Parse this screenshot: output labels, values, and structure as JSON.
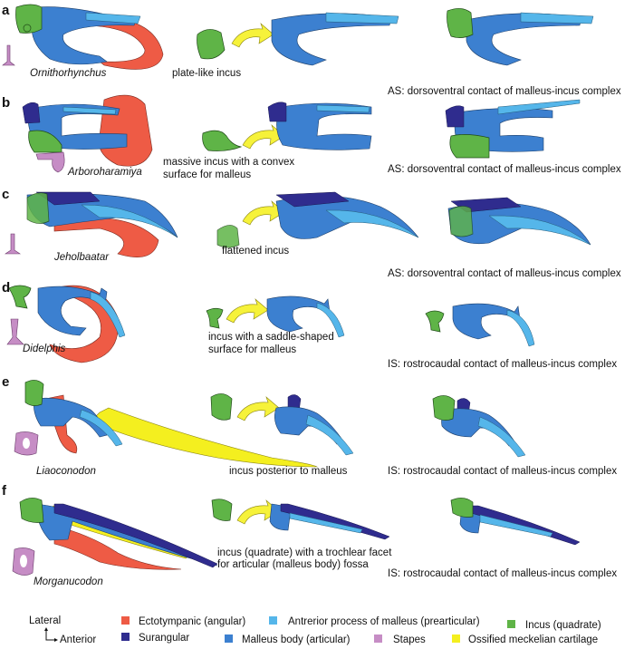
{
  "colors": {
    "ectotympanic": "#ee5b45",
    "surangular": "#2f2c8e",
    "malleus_body": "#3c80d0",
    "anterior_process": "#55b6ea",
    "incus": "#5fb447",
    "stapes": "#c68dc5",
    "meckelian": "#f4ef1f"
  },
  "panels": [
    {
      "letter": "a",
      "taxon": "Ornithorhynchus",
      "incus_note": [
        "plate-like incus"
      ],
      "contact": "AS: dorsoventral contact of malleus-incus complex"
    },
    {
      "letter": "b",
      "taxon": "Arboroharamiya",
      "incus_note": [
        "massive incus with a convex",
        "surface for malleus"
      ],
      "contact": "AS: dorsoventral contact of malleus-incus complex"
    },
    {
      "letter": "c",
      "taxon": "Jeholbaatar",
      "incus_note": [
        "flattened incus"
      ],
      "contact": "AS: dorsoventral contact of malleus-incus complex"
    },
    {
      "letter": "d",
      "taxon": "Didelphis",
      "incus_note": [
        "incus with a saddle-shaped",
        "surface for malleus"
      ],
      "contact": "IS: rostrocaudal contact of malleus-incus complex"
    },
    {
      "letter": "e",
      "taxon": "Liaoconodon",
      "incus_note": [
        "incus posterior to malleus"
      ],
      "contact": "IS: rostrocaudal contact of malleus-incus complex"
    },
    {
      "letter": "f",
      "taxon": "Morganucodon",
      "incus_note": [
        "incus (quadrate) with a trochlear facet",
        "for articular (malleus body) fossa"
      ],
      "contact": "IS: rostrocaudal contact of malleus-incus complex"
    }
  ],
  "orientation": {
    "lateral": "Lateral",
    "anterior": "Anterior"
  },
  "legend": [
    {
      "label": "Ectotympanic (angular)",
      "color": "#ee5b45"
    },
    {
      "label": "Surangular",
      "color": "#2f2c8e"
    },
    {
      "label": "Antrerior process of malleus (prearticular)",
      "color": "#55b6ea"
    },
    {
      "label": "Malleus body (articular)",
      "color": "#3c80d0"
    },
    {
      "label": "Stapes",
      "color": "#c68dc5"
    },
    {
      "label": "Incus (quadrate)",
      "color": "#5fb447"
    },
    {
      "label": "Ossified meckelian cartilage",
      "color": "#f4ef1f"
    }
  ]
}
